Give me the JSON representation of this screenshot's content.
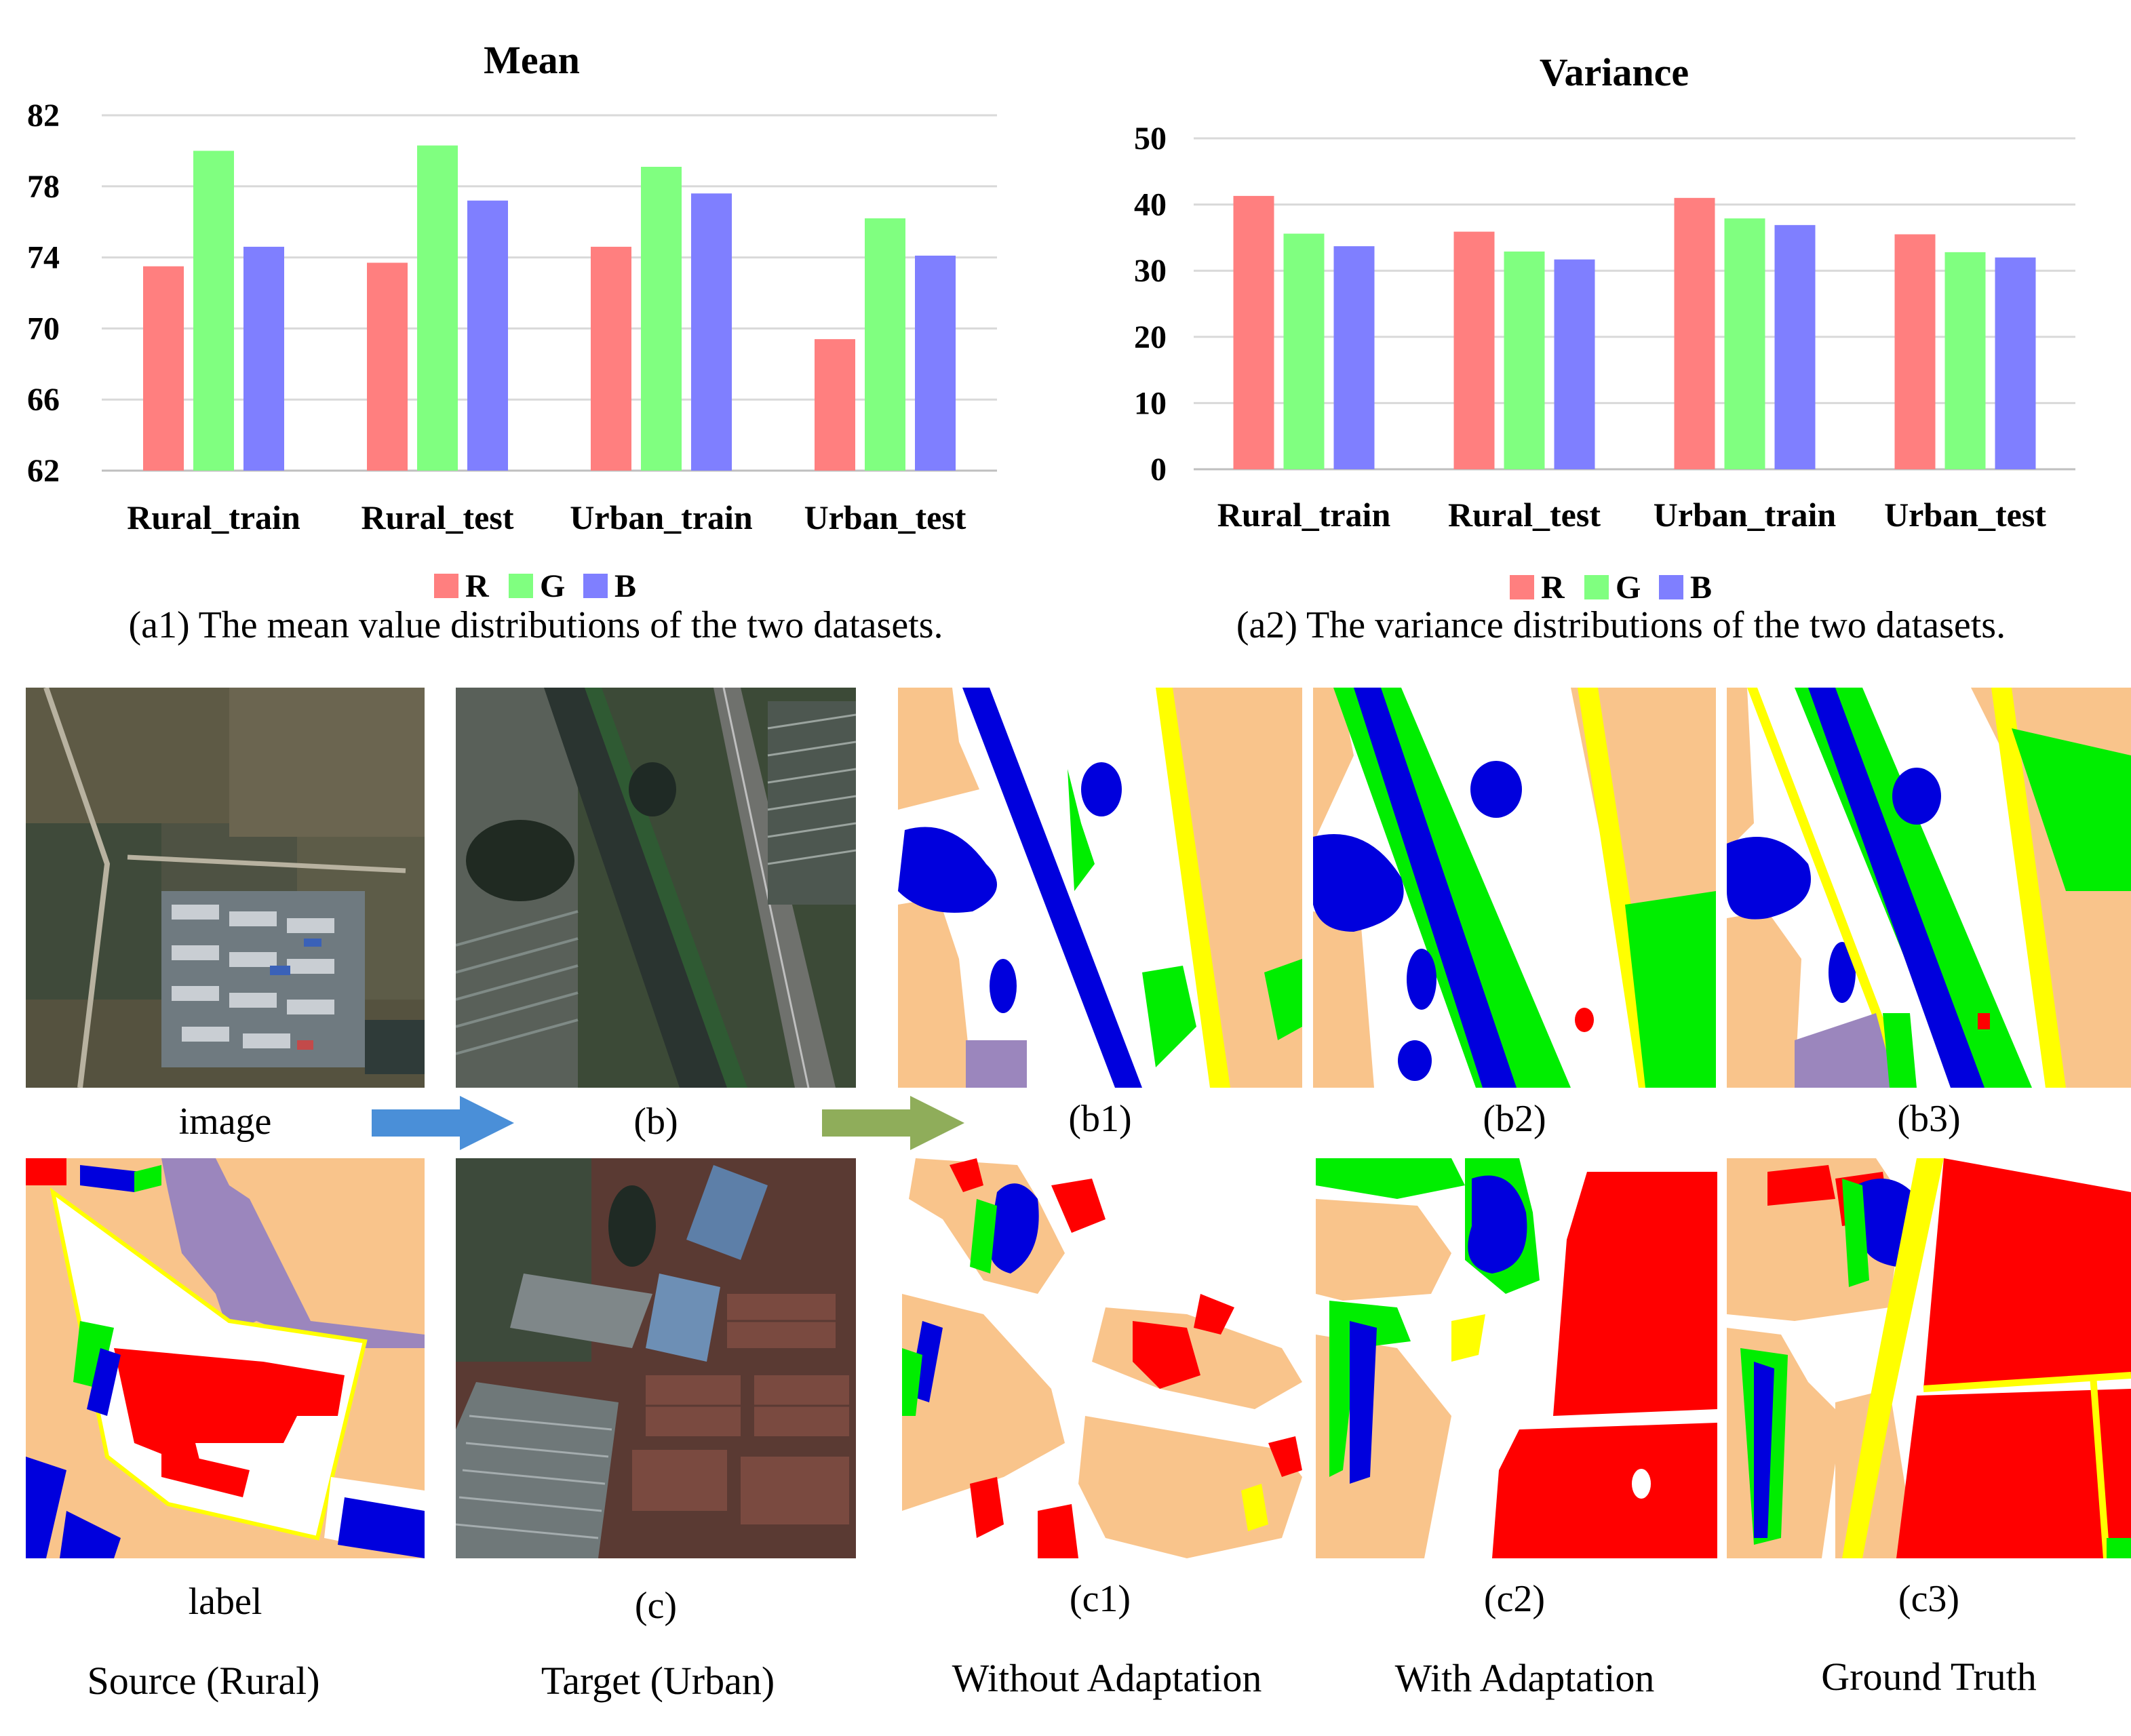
{
  "chart_data": [
    {
      "type": "bar",
      "title": "Mean",
      "categories": [
        "Rural_train",
        "Rural_test",
        "Urban_train",
        "Urban_test"
      ],
      "series": [
        {
          "name": "R",
          "values": [
            73.5,
            73.7,
            74.6,
            69.4
          ]
        },
        {
          "name": "G",
          "values": [
            80.0,
            80.3,
            79.1,
            76.2
          ]
        },
        {
          "name": "B",
          "values": [
            74.6,
            77.2,
            77.6,
            74.1
          ]
        }
      ],
      "yticks": [
        "62",
        "66",
        "70",
        "74",
        "78",
        "82"
      ],
      "ylim": [
        62,
        82
      ],
      "grid": true,
      "legend_position": "bottom",
      "caption": "(a1) The mean value distributions of the two datasets."
    },
    {
      "type": "bar",
      "title": "Variance",
      "categories": [
        "Rural_train",
        "Rural_test",
        "Urban_train",
        "Urban_test"
      ],
      "series": [
        {
          "name": "R",
          "values": [
            41.3,
            35.9,
            41.0,
            35.5
          ]
        },
        {
          "name": "G",
          "values": [
            35.6,
            32.9,
            37.9,
            32.8
          ]
        },
        {
          "name": "B",
          "values": [
            33.7,
            31.7,
            36.9,
            32.0
          ]
        }
      ],
      "yticks": [
        "0",
        "10",
        "20",
        "30",
        "40",
        "50"
      ],
      "ylim": [
        0,
        50
      ],
      "grid": true,
      "legend_position": "bottom",
      "caption": "(a2) The variance distributions of the two datasets."
    }
  ],
  "colors": {
    "R": "#ff7f7f",
    "G": "#80ff80",
    "B": "#7f7fff",
    "grid": "#d9d9d9",
    "arrow1": "#4a8fd8",
    "arrow2": "#8fad5a"
  },
  "captions": {
    "image": "image",
    "label": "label",
    "b": "(b)",
    "c": "(c)",
    "b1": "(b1)",
    "b2": "(b2)",
    "b3": "(b3)",
    "c1": "(c1)",
    "c2": "(c2)",
    "c3": "(c3)"
  },
  "column_titles": {
    "source": "Source (Rural)",
    "target": "Target (Urban)",
    "without": "Without Adaptation",
    "with": "With Adaptation",
    "truth": "Ground Truth"
  }
}
